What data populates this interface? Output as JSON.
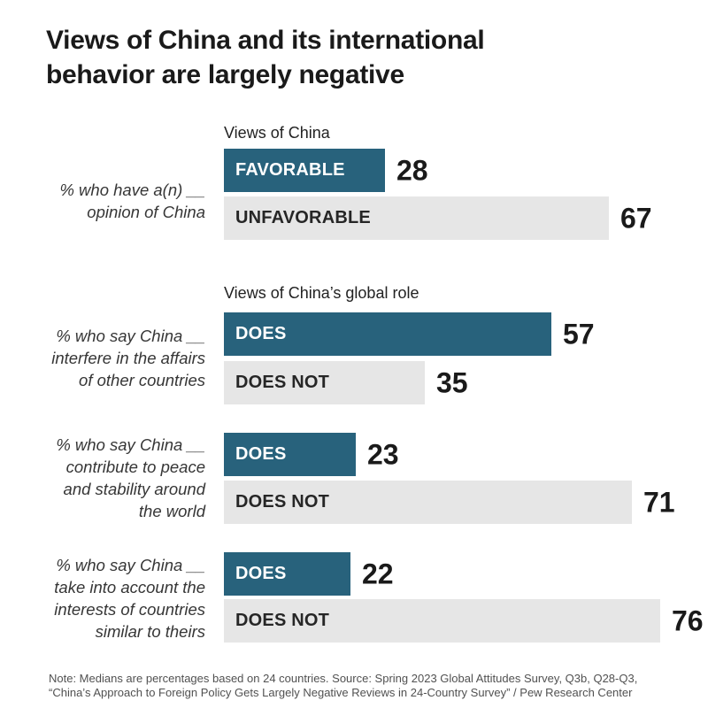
{
  "header": {
    "title_lines": [
      "Views of China and its international",
      "behavior are largely negative"
    ]
  },
  "colors": {
    "bar_teal": "#28627c",
    "bar_gray": "#e6e6e6",
    "title_text": "#1a1a1a",
    "note_text": "#515151"
  },
  "sections": [
    {
      "header": "Views of China",
      "label_lines": [
        "% who have a(n) __",
        "opinion of China"
      ],
      "bars": [
        {
          "label": "FAVORABLE",
          "value": 28
        },
        {
          "label": "UNFAVORABLE",
          "value": 67
        }
      ]
    },
    {
      "header": "Views of China’s global role",
      "label_lines": [
        "% who say China __",
        "interfere in the affairs",
        "of other countries"
      ],
      "bars": [
        {
          "label": "DOES",
          "value": 57
        },
        {
          "label": "DOES NOT",
          "value": 35
        }
      ]
    },
    {
      "label_lines": [
        "% who say China __",
        "contribute to peace",
        "and stability around",
        "the world"
      ],
      "bars": [
        {
          "label": "DOES",
          "value": 23
        },
        {
          "label": "DOES NOT",
          "value": 71
        }
      ]
    },
    {
      "label_lines": [
        "% who say China __",
        "take into account the",
        "interests of countries",
        "similar to theirs"
      ],
      "bars": [
        {
          "label": "DOES",
          "value": 22
        },
        {
          "label": "DOES NOT",
          "value": 76
        }
      ]
    }
  ],
  "note_lines": [
    "Note: Medians are percentages based on 24 countries. Source: Spring 2023 Global Attitudes Survey, Q3b, Q28-Q3,",
    "“China’s Approach to Foreign Policy Gets Largely Negative Reviews in 24-Country Survey” / Pew Research Center"
  ],
  "chart_data": {
    "type": "bar",
    "orientation": "horizontal",
    "unit": "percent (median across countries)",
    "title": "Views of China and its international behavior are largely negative",
    "xlim": [
      0,
      80
    ],
    "grid": false,
    "legend": "none",
    "groups": [
      {
        "section_header": "Views of China",
        "question": "% who have a(n) __ opinion of China",
        "bars": [
          {
            "category": "FAVORABLE",
            "value": 28,
            "color": "#28627c"
          },
          {
            "category": "UNFAVORABLE",
            "value": 67,
            "color": "#e6e6e6"
          }
        ]
      },
      {
        "section_header": "Views of China’s global role",
        "question": "% who say China __ interfere in the affairs of other countries",
        "bars": [
          {
            "category": "DOES",
            "value": 57,
            "color": "#28627c"
          },
          {
            "category": "DOES NOT",
            "value": 35,
            "color": "#e6e6e6"
          }
        ]
      },
      {
        "question": "% who say China __ contribute to peace and stability around the world",
        "bars": [
          {
            "category": "DOES",
            "value": 23,
            "color": "#28627c"
          },
          {
            "category": "DOES NOT",
            "value": 71,
            "color": "#e6e6e6"
          }
        ]
      },
      {
        "question": "% who say China __ take into account the interests of countries similar to theirs",
        "bars": [
          {
            "category": "DOES",
            "value": 22,
            "color": "#28627c"
          },
          {
            "category": "DOES NOT",
            "value": 76,
            "color": "#e6e6e6"
          }
        ]
      }
    ]
  }
}
